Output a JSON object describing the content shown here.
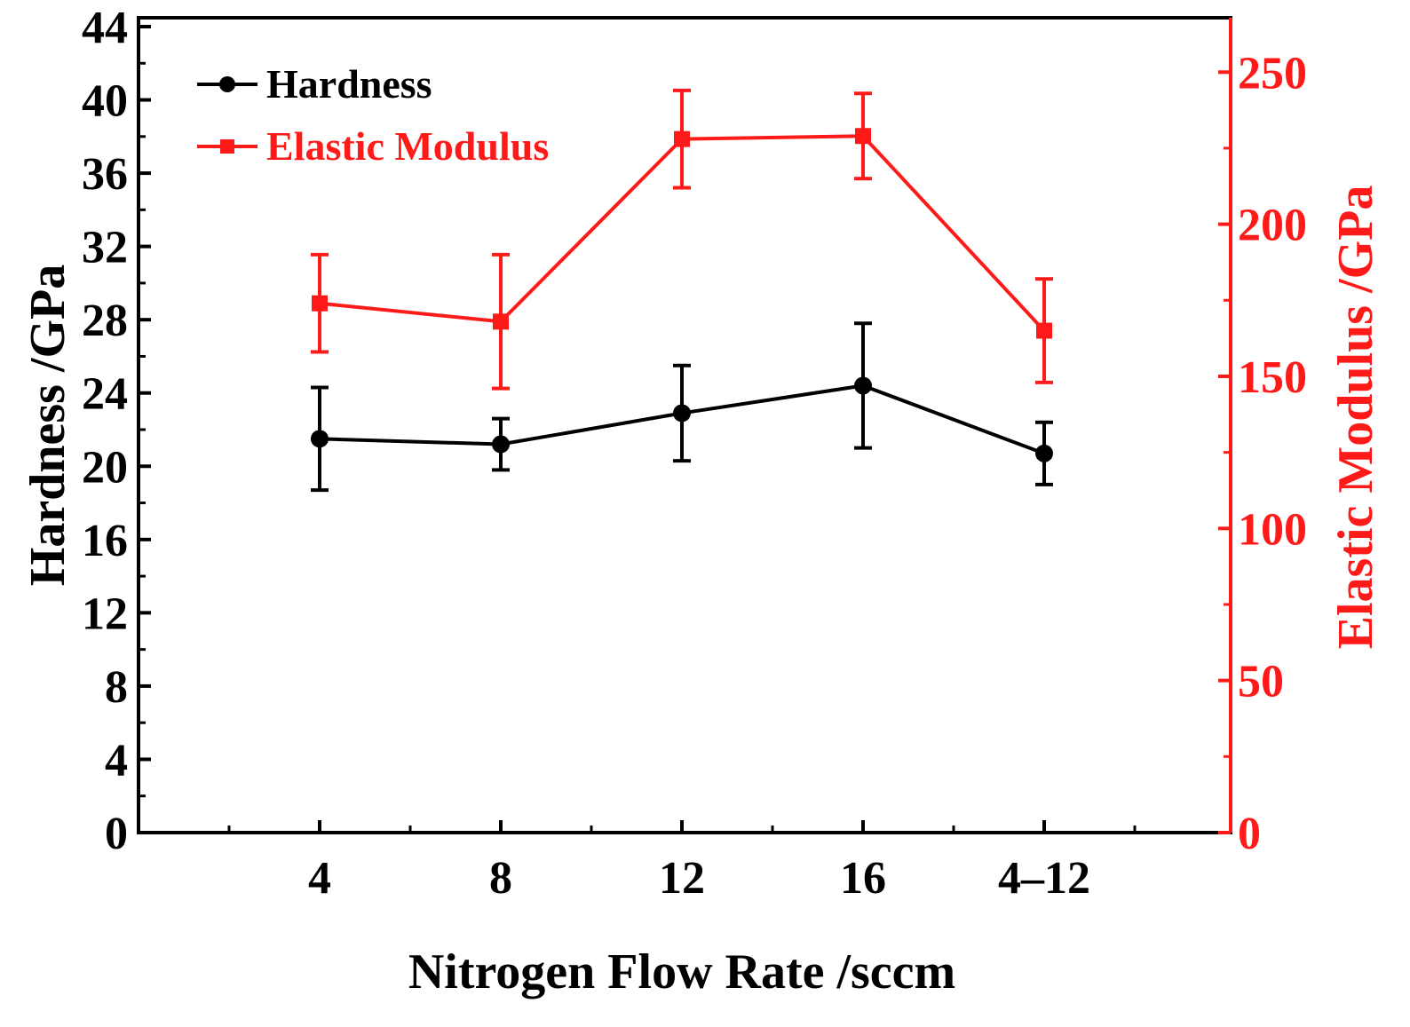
{
  "chart_data": {
    "type": "line",
    "xlabel": "Nitrogen Flow Rate /sccm",
    "categories": [
      "4",
      "8",
      "12",
      "16",
      "4–12"
    ],
    "y_left": {
      "label": "Hardness /GPa",
      "ylim": [
        0,
        44
      ],
      "ticks": [
        "0",
        "4",
        "8",
        "12",
        "16",
        "20",
        "24",
        "28",
        "32",
        "36",
        "40",
        "44"
      ]
    },
    "y_right": {
      "label": "Elastic Modulus /GPa",
      "ylim": [
        0,
        260
      ],
      "ticks": [
        "0",
        "50",
        "100",
        "150",
        "200",
        "250"
      ]
    },
    "series": [
      {
        "name": "Hardness",
        "axis": "left",
        "color": "#000000",
        "marker": "circle",
        "values": [
          21.5,
          21.2,
          22.9,
          24.4,
          20.7
        ],
        "errors": [
          2.8,
          1.4,
          2.6,
          3.4,
          1.7
        ]
      },
      {
        "name": "Elastic Modulus",
        "axis": "right",
        "color": "#ff1a1a",
        "marker": "square",
        "values": [
          174,
          168,
          228,
          229,
          165
        ],
        "errors": [
          16,
          22,
          16,
          14,
          17
        ]
      }
    ],
    "legend": {
      "position": "top-left",
      "items": [
        "Hardness",
        "Elastic Modulus"
      ]
    }
  }
}
